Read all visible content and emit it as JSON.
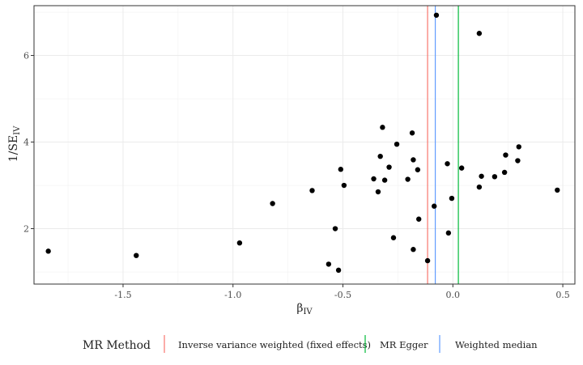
{
  "chart_data": {
    "type": "scatter",
    "title": "",
    "xlabel": "β",
    "xlabel_sub": "IV",
    "ylabel": "1/SE",
    "ylabel_sub": "IV",
    "xlim": [
      -1.905,
      0.555
    ],
    "ylim": [
      0.72,
      7.15
    ],
    "x_ticks": [
      -1.5,
      -1.0,
      -0.5,
      0.0,
      0.5
    ],
    "x_tick_labels": [
      "-1.5",
      "-1.0",
      "-0.5",
      "0.0",
      "0.5"
    ],
    "y_ticks": [
      2,
      4,
      6
    ],
    "y_tick_labels": [
      "2",
      "4",
      "6"
    ],
    "grid": true,
    "points": [
      {
        "x": -1.84,
        "y": 1.48
      },
      {
        "x": -1.44,
        "y": 1.38
      },
      {
        "x": -0.97,
        "y": 1.67
      },
      {
        "x": -0.82,
        "y": 2.58
      },
      {
        "x": -0.64,
        "y": 2.88
      },
      {
        "x": -0.565,
        "y": 1.18
      },
      {
        "x": -0.535,
        "y": 2.0
      },
      {
        "x": -0.52,
        "y": 1.04
      },
      {
        "x": -0.51,
        "y": 3.37
      },
      {
        "x": -0.495,
        "y": 3.0
      },
      {
        "x": -0.36,
        "y": 3.15
      },
      {
        "x": -0.34,
        "y": 2.85
      },
      {
        "x": -0.33,
        "y": 3.67
      },
      {
        "x": -0.32,
        "y": 4.34
      },
      {
        "x": -0.31,
        "y": 3.12
      },
      {
        "x": -0.29,
        "y": 3.42
      },
      {
        "x": -0.27,
        "y": 1.79
      },
      {
        "x": -0.255,
        "y": 3.95
      },
      {
        "x": -0.205,
        "y": 3.14
      },
      {
        "x": -0.185,
        "y": 4.21
      },
      {
        "x": -0.18,
        "y": 3.59
      },
      {
        "x": -0.18,
        "y": 1.52
      },
      {
        "x": -0.16,
        "y": 3.36
      },
      {
        "x": -0.155,
        "y": 2.22
      },
      {
        "x": -0.115,
        "y": 1.26
      },
      {
        "x": -0.085,
        "y": 2.52
      },
      {
        "x": -0.075,
        "y": 6.93
      },
      {
        "x": -0.025,
        "y": 3.5
      },
      {
        "x": -0.02,
        "y": 1.9
      },
      {
        "x": -0.005,
        "y": 2.7
      },
      {
        "x": 0.04,
        "y": 3.4
      },
      {
        "x": 0.12,
        "y": 6.51
      },
      {
        "x": 0.12,
        "y": 2.96
      },
      {
        "x": 0.13,
        "y": 3.21
      },
      {
        "x": 0.19,
        "y": 3.2
      },
      {
        "x": 0.235,
        "y": 3.3
      },
      {
        "x": 0.24,
        "y": 3.7
      },
      {
        "x": 0.295,
        "y": 3.57
      },
      {
        "x": 0.3,
        "y": 3.89
      },
      {
        "x": 0.475,
        "y": 2.89
      }
    ],
    "reference_lines": [
      {
        "name": "Inverse variance weighted (fixed effects)",
        "x": -0.115,
        "color": "#F8766D"
      },
      {
        "name": "MR Egger",
        "x": 0.025,
        "color": "#00BA38"
      },
      {
        "name": "Weighted median",
        "x": -0.08,
        "color": "#619CFF"
      }
    ],
    "legend": {
      "title": "MR Method",
      "position": "bottom",
      "entries": [
        {
          "label": "Inverse variance weighted (fixed effects)",
          "color": "#F8766D"
        },
        {
          "label": "MR Egger",
          "color": "#00BA38"
        },
        {
          "label": "Weighted median",
          "color": "#619CFF"
        }
      ]
    }
  }
}
